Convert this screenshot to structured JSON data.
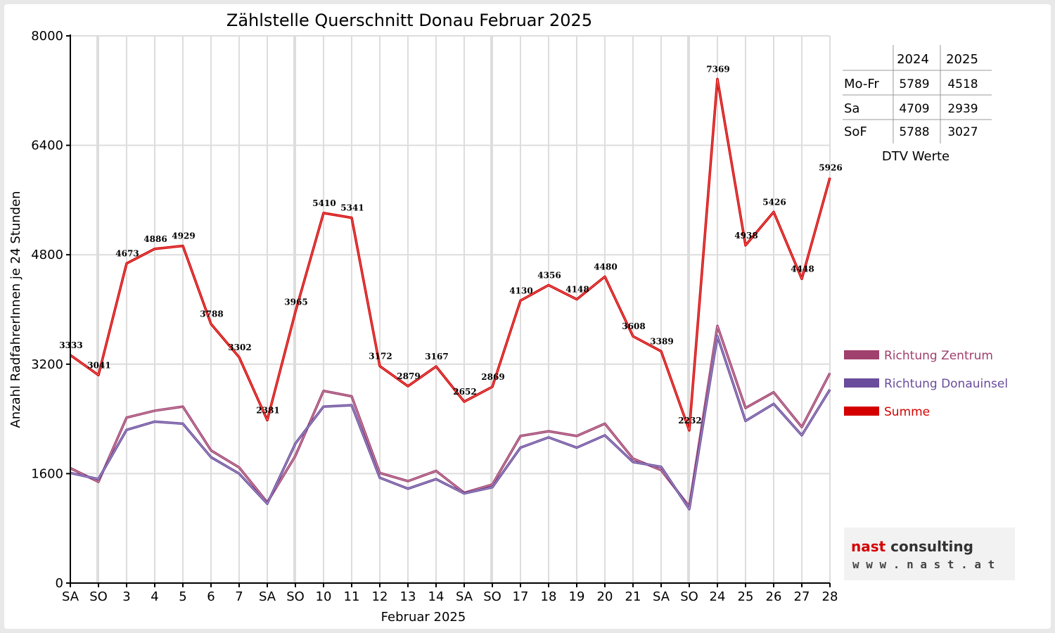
{
  "chart_data": {
    "type": "line",
    "title": "Zählstelle Querschnitt Donau Februar 2025",
    "xlabel": "Februar 2025",
    "ylabel": "Anzahl RadfahrerInnen je 24 Stunden",
    "ylim": [
      0,
      8000
    ],
    "yticks": [
      "0",
      "1600",
      "3200",
      "4800",
      "6400",
      "8000"
    ],
    "grid": true,
    "legend_position": "right",
    "categories": [
      "SA",
      "SO",
      "3",
      "4",
      "5",
      "6",
      "7",
      "SA",
      "SO",
      "10",
      "11",
      "12",
      "13",
      "14",
      "SA",
      "SO",
      "17",
      "18",
      "19",
      "20",
      "21",
      "SA",
      "SO",
      "24",
      "25",
      "26",
      "27",
      "28"
    ],
    "weekend_categories": [
      1,
      8,
      15,
      22
    ],
    "weekend_color": "#ee0000",
    "series": [
      {
        "name": "Richtung Zentrum",
        "color": "#a0406e",
        "values": [
          1680,
          1480,
          2420,
          2520,
          2580,
          1940,
          1690,
          1180,
          1860,
          2810,
          2730,
          1610,
          1490,
          1640,
          1320,
          1440,
          2150,
          2220,
          2150,
          2330,
          1820,
          1650,
          1120,
          3760,
          2560,
          2790,
          2280,
          3070
        ]
      },
      {
        "name": "Richtung Donauinsel",
        "color": "#6a4c9c",
        "values": [
          1610,
          1520,
          2240,
          2360,
          2330,
          1840,
          1600,
          1160,
          2040,
          2580,
          2600,
          1540,
          1380,
          1520,
          1310,
          1400,
          1980,
          2130,
          1980,
          2160,
          1770,
          1700,
          1080,
          3610,
          2370,
          2620,
          2160,
          2830
        ]
      },
      {
        "name": "Summe",
        "color": "#d40000",
        "values": [
          3333,
          3041,
          4673,
          4886,
          4929,
          3788,
          3302,
          2381,
          3965,
          5410,
          5341,
          3172,
          2879,
          3167,
          2652,
          2869,
          4130,
          4356,
          4148,
          4480,
          3608,
          3389,
          2232,
          7369,
          4938,
          5426,
          4448,
          5926
        ]
      }
    ],
    "data_labels": [
      "3333",
      "3041",
      "4673",
      "4886",
      "4929",
      "3788",
      "3302",
      "2381",
      "3965",
      "5410",
      "5341",
      "3172",
      "2879",
      "3167",
      "2652",
      "2869",
      "4130",
      "4356",
      "4148",
      "4480",
      "3608",
      "3389",
      "2232",
      "7369",
      "4938",
      "5426",
      "4448",
      "5926"
    ]
  },
  "dtv_table": {
    "headers": [
      "2024",
      "2025"
    ],
    "rows": [
      {
        "label": "Mo-Fr",
        "v2024": "5789",
        "v2025": "4518"
      },
      {
        "label": "Sa",
        "v2024": "4709",
        "v2025": "2939"
      },
      {
        "label": "SoF",
        "v2024": "5788",
        "v2025": "3027"
      }
    ],
    "caption": "DTV Werte"
  },
  "logo": {
    "main_part1": "nast",
    "main_part2": " consulting",
    "sub": "w w w . n a s t . a t",
    "color1": "#d40000",
    "color2": "#333333"
  }
}
